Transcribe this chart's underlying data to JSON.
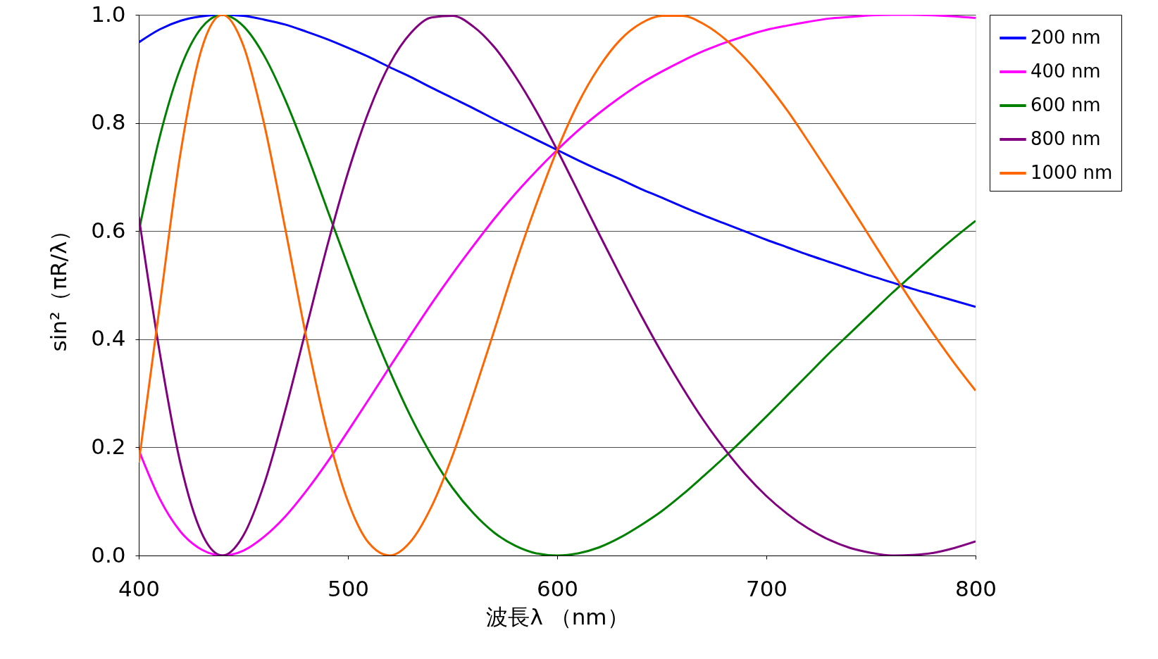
{
  "chart_data": {
    "type": "line",
    "xlabel": "波長λ （nm）",
    "ylabel": "sin²（πR/λ）",
    "x": [
      400,
      410,
      420,
      430,
      440,
      450,
      460,
      470,
      480,
      490,
      500,
      510,
      520,
      530,
      540,
      550,
      560,
      570,
      580,
      590,
      600,
      610,
      620,
      630,
      640,
      650,
      660,
      670,
      680,
      690,
      700,
      710,
      720,
      730,
      740,
      750,
      760,
      770,
      780,
      790,
      800
    ],
    "series": [
      {
        "name": "200 nm",
        "color": "#0000ff",
        "values": [
          0.949,
          0.973,
          0.989,
          0.997,
          1,
          0.998,
          0.991,
          0.982,
          0.969,
          0.955,
          0.939,
          0.922,
          0.903,
          0.885,
          0.865,
          0.846,
          0.827,
          0.807,
          0.788,
          0.769,
          0.75,
          0.731,
          0.713,
          0.696,
          0.678,
          0.662,
          0.645,
          0.629,
          0.614,
          0.599,
          0.584,
          0.57,
          0.556,
          0.543,
          0.53,
          0.517,
          0.505,
          0.493,
          0.482,
          0.471,
          0.46
        ]
      },
      {
        "name": "400 nm",
        "color": "#ff00ff",
        "values": [
          0.195,
          0.105,
          0.044,
          0.011,
          0,
          0.009,
          0.035,
          0.072,
          0.119,
          0.172,
          0.23,
          0.289,
          0.349,
          0.408,
          0.466,
          0.521,
          0.573,
          0.623,
          0.669,
          0.711,
          0.75,
          0.786,
          0.818,
          0.847,
          0.873,
          0.895,
          0.915,
          0.933,
          0.948,
          0.961,
          0.972,
          0.98,
          0.987,
          0.993,
          0.996,
          0.999,
          1.0,
          1.0,
          0.999,
          0.997,
          0.994
        ]
      },
      {
        "name": "600 nm",
        "color": "#008000",
        "values": [
          0.599,
          0.774,
          0.902,
          0.976,
          1,
          0.979,
          0.924,
          0.843,
          0.746,
          0.641,
          0.536,
          0.434,
          0.341,
          0.257,
          0.185,
          0.125,
          0.078,
          0.042,
          0.018,
          0.004,
          0,
          0.004,
          0.015,
          0.033,
          0.056,
          0.082,
          0.113,
          0.147,
          0.182,
          0.219,
          0.257,
          0.296,
          0.335,
          0.374,
          0.411,
          0.448,
          0.485,
          0.52,
          0.555,
          0.588,
          0.619
        ]
      },
      {
        "name": "800 nm",
        "color": "#800080",
        "values": [
          0.627,
          0.376,
          0.169,
          0.042,
          0,
          0.037,
          0.133,
          0.268,
          0.419,
          0.571,
          0.708,
          0.822,
          0.909,
          0.966,
          0.995,
          0.998,
          0.978,
          0.94,
          0.886,
          0.822,
          0.75,
          0.673,
          0.595,
          0.519,
          0.445,
          0.375,
          0.31,
          0.25,
          0.197,
          0.15,
          0.11,
          0.077,
          0.05,
          0.029,
          0.014,
          0.005,
          0,
          0.001,
          0.005,
          0.014,
          0.026
        ]
      },
      {
        "name": "1000 nm",
        "color": "#ff6600",
        "values": [
          0.172,
          0.461,
          0.745,
          0.936,
          1,
          0.943,
          0.797,
          0.605,
          0.405,
          0.23,
          0.1,
          0.023,
          0,
          0.026,
          0.091,
          0.185,
          0.298,
          0.417,
          0.538,
          0.649,
          0.75,
          0.836,
          0.903,
          0.953,
          0.984,
          0.998,
          0.998,
          0.983,
          0.956,
          0.919,
          0.874,
          0.823,
          0.766,
          0.707,
          0.647,
          0.586,
          0.525,
          0.466,
          0.409,
          0.355,
          0.305
        ]
      }
    ],
    "xlim": [
      400,
      800
    ],
    "xticks": [
      400,
      500,
      600,
      700,
      800
    ],
    "ylim": [
      0,
      1
    ],
    "yticks": [
      {
        "value": 0,
        "label": "0.0"
      },
      {
        "value": 0.2,
        "label": "0.2"
      },
      {
        "value": 0.4,
        "label": "0.4"
      },
      {
        "value": 0.6,
        "label": "0.6"
      },
      {
        "value": 0.8,
        "label": "0.8"
      },
      {
        "value": 1,
        "label": "1.0"
      }
    ],
    "grid": "y",
    "legend": "top right",
    "marker": "none",
    "line_style": "solid"
  }
}
